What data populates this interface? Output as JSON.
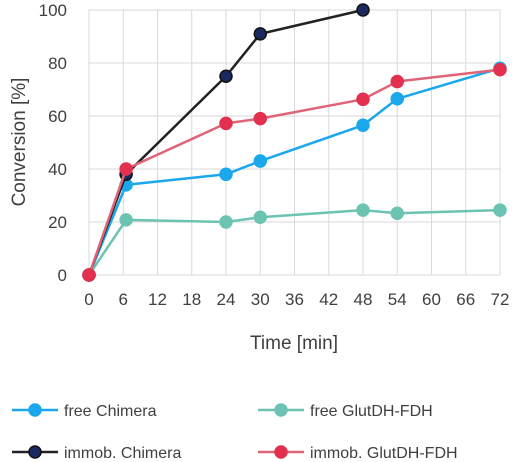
{
  "chart_data": {
    "type": "line",
    "title": "",
    "xlabel": "Time [min]",
    "ylabel": "Conversion [%]",
    "xlim": [
      0,
      72
    ],
    "ylim": [
      0,
      100
    ],
    "xticks": [
      0,
      6,
      12,
      18,
      24,
      30,
      36,
      42,
      48,
      54,
      60,
      66,
      72
    ],
    "yticks": [
      0,
      20,
      40,
      60,
      80,
      100
    ],
    "grid": true,
    "legend_position": "bottom",
    "series": [
      {
        "name": "free Chimera",
        "color": "#1aa7ec",
        "marker_edge": "#1aa7ec",
        "x": [
          0,
          6.5,
          24,
          30,
          48,
          54,
          72
        ],
        "y": [
          0,
          34,
          38,
          43,
          56.5,
          66.5,
          78
        ]
      },
      {
        "name": "free GlutDH-FDH",
        "color": "#6cc3b2",
        "marker_edge": "#6cc3b2",
        "x": [
          0,
          6.5,
          24,
          30,
          48,
          54,
          72
        ],
        "y": [
          0,
          20.8,
          20,
          21.8,
          24.5,
          23.3,
          24.5
        ]
      },
      {
        "name": "immob. Chimera",
        "color": "#222222",
        "marker_fill": "#1a2a5e",
        "marker_edge": "#111111",
        "x": [
          0,
          6.5,
          24,
          30,
          48
        ],
        "y": [
          0,
          38,
          75,
          91,
          100
        ]
      },
      {
        "name": "immob. GlutDH-FDH",
        "color": "#e06477",
        "marker_fill": "#e3304f",
        "marker_edge": "#e3304f",
        "x": [
          0,
          6.5,
          24,
          30,
          48,
          54,
          72
        ],
        "y": [
          0,
          40,
          57.2,
          59,
          66.3,
          73,
          77.5
        ]
      }
    ]
  }
}
